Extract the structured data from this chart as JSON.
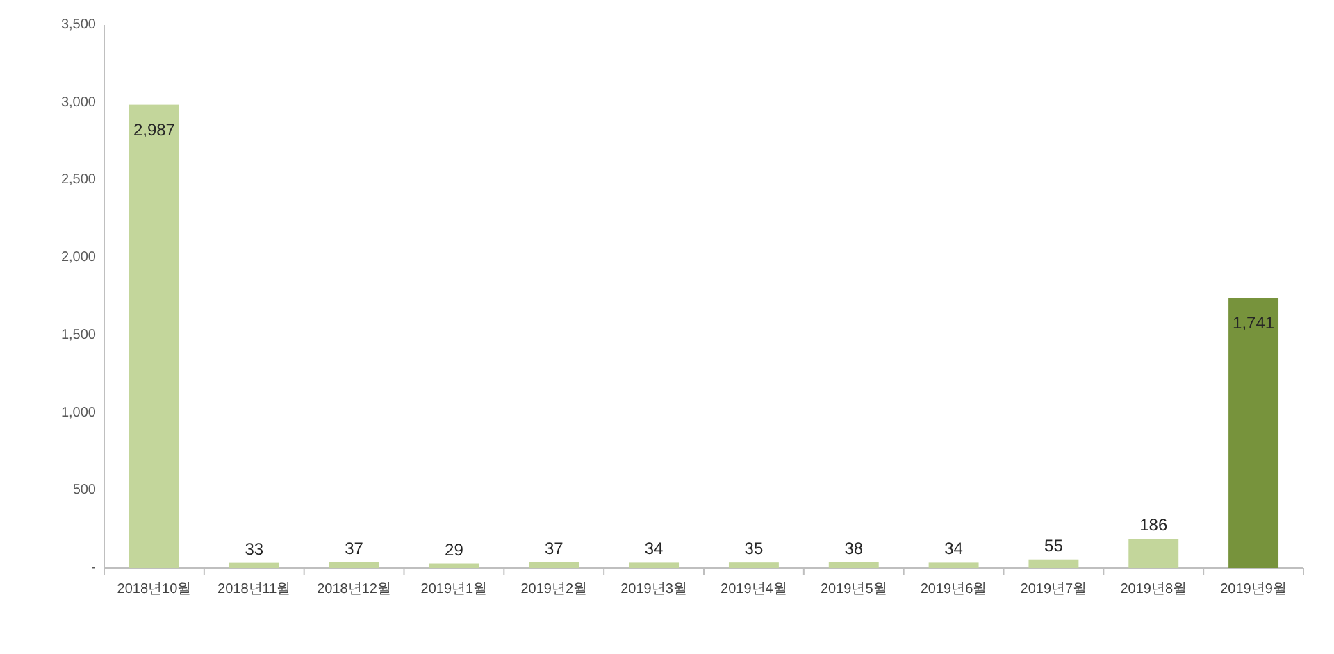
{
  "chart_data": {
    "type": "bar",
    "categories": [
      "2018년10월",
      "2018년11월",
      "2018년12월",
      "2019년1월",
      "2019년2월",
      "2019년3월",
      "2019년4월",
      "2019년5월",
      "2019년6월",
      "2019년7월",
      "2019년8월",
      "2019년9월"
    ],
    "values": [
      2987,
      33,
      37,
      29,
      37,
      34,
      35,
      38,
      34,
      55,
      186,
      1741
    ],
    "value_labels": [
      "2,987",
      "33",
      "37",
      "29",
      "37",
      "34",
      "35",
      "38",
      "34",
      "55",
      "186",
      "1,741"
    ],
    "colors": [
      "#c3d69b",
      "#c3d69b",
      "#c3d69b",
      "#c3d69b",
      "#c3d69b",
      "#c3d69b",
      "#c3d69b",
      "#c3d69b",
      "#c3d69b",
      "#c3d69b",
      "#c3d69b",
      "#77933c"
    ],
    "ylim": [
      0,
      3500
    ],
    "yticks": [
      {
        "value": 0,
        "label": "-"
      },
      {
        "value": 500,
        "label": "500"
      },
      {
        "value": 1000,
        "label": "1,000"
      },
      {
        "value": 1500,
        "label": "1,500"
      },
      {
        "value": 2000,
        "label": "2,000"
      },
      {
        "value": 2500,
        "label": "2,500"
      },
      {
        "value": 3000,
        "label": "3,000"
      },
      {
        "value": 3500,
        "label": "3,500"
      }
    ],
    "grid": false
  }
}
